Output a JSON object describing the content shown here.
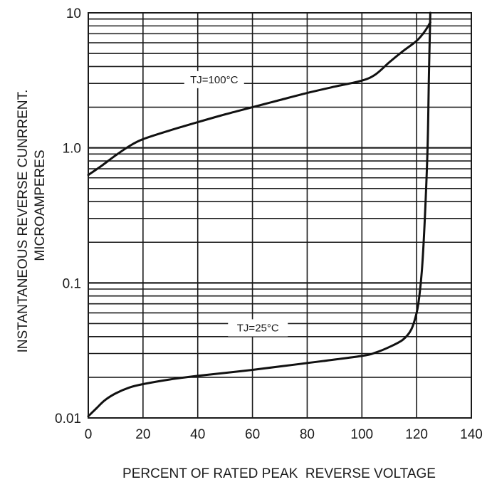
{
  "chart_data": {
    "type": "line",
    "xlabel": "PERCENT OF RATED PEAK  REVERSE VOLTAGE",
    "ylabel_lines": [
      "INSTANTANEOUS REVERSE CUNRRENT.",
      "MICROAMPERES"
    ],
    "x_ticks": [
      0,
      20,
      40,
      60,
      80,
      100,
      120,
      140
    ],
    "y_ticks": [
      {
        "value": 0.01,
        "label": "0.01"
      },
      {
        "value": 0.1,
        "label": "0.1"
      },
      {
        "value": 1,
        "label": "1.0"
      },
      {
        "value": 10,
        "label": "10"
      }
    ],
    "xlim": [
      0,
      140
    ],
    "ylim": [
      0.01,
      10
    ],
    "y_scale": "log",
    "grid": true,
    "series": [
      {
        "name": "TJ=100°C",
        "label": "TJ=100°C",
        "x": [
          0,
          5,
          10,
          15,
          20,
          30,
          40,
          50,
          60,
          70,
          80,
          90,
          100,
          105,
          110,
          115,
          120,
          123,
          125
        ],
        "y": [
          0.63,
          0.74,
          0.88,
          1.03,
          1.16,
          1.35,
          1.55,
          1.77,
          2.0,
          2.26,
          2.55,
          2.84,
          3.15,
          3.5,
          4.3,
          5.2,
          6.2,
          7.3,
          8.5
        ]
      },
      {
        "name": "TJ=25°C",
        "label": "TJ=25°C",
        "x": [
          0,
          3,
          6,
          10,
          15,
          20,
          30,
          40,
          60,
          80,
          100,
          105,
          110,
          115,
          118,
          120,
          121,
          122,
          123,
          124,
          124.5,
          125
        ],
        "y": [
          0.0103,
          0.0118,
          0.0135,
          0.0152,
          0.0168,
          0.0178,
          0.0193,
          0.0205,
          0.0227,
          0.0255,
          0.0288,
          0.0305,
          0.0335,
          0.038,
          0.045,
          0.06,
          0.08,
          0.13,
          0.3,
          1.0,
          3.5,
          10
        ]
      }
    ]
  }
}
